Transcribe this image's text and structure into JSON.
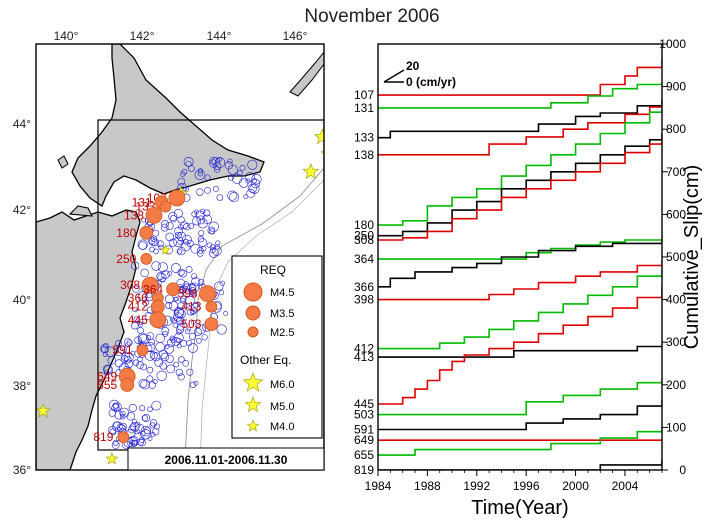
{
  "figure": {
    "title": "November 2006"
  },
  "map": {
    "lon_ticks": [
      "140°",
      "142°",
      "144°",
      "146°"
    ],
    "lat_ticks": [
      "44°",
      "42°",
      "40°",
      "38°",
      "36°"
    ],
    "date_range": "2006.11.01-2006.11.30",
    "land_color": "#c8c8c8",
    "sea_color": "#ffffff",
    "station_color": "#c00000",
    "marker_color": "#f47b45",
    "star_color": "#ffff33",
    "eq_circle_color": "#1f1fd0",
    "stations": [
      {
        "id": "107",
        "lon": 142.9,
        "lat": 42.3
      },
      {
        "id": "131",
        "lon": 142.5,
        "lat": 42.2
      },
      {
        "id": "133",
        "lon": 142.6,
        "lat": 42.1
      },
      {
        "id": "138",
        "lon": 142.3,
        "lat": 41.9
      },
      {
        "id": "180",
        "lon": 142.1,
        "lat": 41.5
      },
      {
        "id": "250",
        "lon": 142.1,
        "lat": 40.9
      },
      {
        "id": "308",
        "lon": 142.2,
        "lat": 40.3
      },
      {
        "id": "364",
        "lon": 142.8,
        "lat": 40.2
      },
      {
        "id": "366",
        "lon": 142.4,
        "lat": 40.0
      },
      {
        "id": "398",
        "lon": 143.7,
        "lat": 40.1
      },
      {
        "id": "412",
        "lon": 142.4,
        "lat": 39.8
      },
      {
        "id": "413",
        "lon": 143.8,
        "lat": 39.8
      },
      {
        "id": "445",
        "lon": 142.4,
        "lat": 39.5
      },
      {
        "id": "503",
        "lon": 143.8,
        "lat": 39.4
      },
      {
        "id": "591",
        "lon": 142.0,
        "lat": 38.8
      },
      {
        "id": "649",
        "lon": 141.6,
        "lat": 38.2
      },
      {
        "id": "655",
        "lon": 141.6,
        "lat": 38.0
      },
      {
        "id": "819",
        "lon": 141.5,
        "lat": 36.8
      }
    ],
    "legend": {
      "req_title": "REQ",
      "req_items": [
        "M4.5",
        "M3.5",
        "M2.5"
      ],
      "other_title": "Other Eq.",
      "other_items": [
        "M6.0",
        "M5.0",
        "M4.0"
      ]
    }
  },
  "chart_data": {
    "type": "line",
    "xlabel": "Time(Year)",
    "ylabel": "Cumulative_Slip(cm)",
    "xlim": [
      1984,
      2007
    ],
    "ylim": [
      0,
      1000
    ],
    "x_ticks": [
      "1984",
      "1988",
      "1992",
      "1996",
      "2000",
      "2004"
    ],
    "y_ticks": [
      "0",
      "100",
      "200",
      "300",
      "400",
      "500",
      "600",
      "700",
      "800",
      "900",
      "1000"
    ],
    "scale_label_top": "20",
    "scale_label_bottom": "0 (cm/yr)",
    "series": [
      {
        "name": "107",
        "color": "#e00000",
        "points": [
          [
            1984,
            880
          ],
          [
            2000,
            880
          ],
          [
            2002,
            905
          ],
          [
            2004,
            925
          ],
          [
            2005,
            945
          ],
          [
            2007,
            965
          ]
        ]
      },
      {
        "name": "131",
        "color": "#00bb00",
        "points": [
          [
            1984,
            850
          ],
          [
            1996,
            850
          ],
          [
            1998,
            862
          ],
          [
            2001,
            878
          ],
          [
            2003,
            895
          ],
          [
            2005,
            905
          ],
          [
            2007,
            910
          ]
        ]
      },
      {
        "name": "133",
        "color": "#000000",
        "points": [
          [
            1984,
            780
          ],
          [
            1985,
            795
          ],
          [
            1995,
            795
          ],
          [
            1997,
            812
          ],
          [
            2000,
            830
          ],
          [
            2002,
            838
          ],
          [
            2005,
            855
          ],
          [
            2007,
            870
          ]
        ]
      },
      {
        "name": "138",
        "color": "#e00000",
        "points": [
          [
            1984,
            740
          ],
          [
            1991,
            740
          ],
          [
            1993,
            765
          ],
          [
            1996,
            782
          ],
          [
            1999,
            800
          ],
          [
            2001,
            815
          ],
          [
            2004,
            835
          ],
          [
            2006,
            852
          ],
          [
            2007,
            862
          ]
        ]
      },
      {
        "name": "180",
        "color": "#00bb00",
        "points": [
          [
            1984,
            575
          ],
          [
            1986,
            585
          ],
          [
            1988,
            620
          ],
          [
            1990,
            640
          ],
          [
            1992,
            660
          ],
          [
            1994,
            690
          ],
          [
            1996,
            715
          ],
          [
            1998,
            740
          ],
          [
            2000,
            765
          ],
          [
            2002,
            790
          ],
          [
            2004,
            815
          ],
          [
            2006,
            840
          ],
          [
            2007,
            848
          ]
        ]
      },
      {
        "name": "250",
        "color": "#000000",
        "points": [
          [
            1984,
            550
          ],
          [
            1986,
            560
          ],
          [
            1988,
            580
          ],
          [
            1990,
            610
          ],
          [
            1992,
            630
          ],
          [
            1994,
            660
          ],
          [
            1996,
            680
          ],
          [
            1998,
            700
          ],
          [
            2000,
            720
          ],
          [
            2002,
            740
          ],
          [
            2004,
            760
          ],
          [
            2006,
            775
          ],
          [
            2007,
            790
          ]
        ]
      },
      {
        "name": "308",
        "color": "#e00000",
        "points": [
          [
            1984,
            540
          ],
          [
            1986,
            545
          ],
          [
            1988,
            560
          ],
          [
            1990,
            590
          ],
          [
            1992,
            610
          ],
          [
            1994,
            640
          ],
          [
            1996,
            660
          ],
          [
            1998,
            680
          ],
          [
            2000,
            700
          ],
          [
            2002,
            720
          ],
          [
            2004,
            745
          ],
          [
            2006,
            765
          ],
          [
            2007,
            785
          ]
        ]
      },
      {
        "name": "364",
        "color": "#00bb00",
        "points": [
          [
            1984,
            495
          ],
          [
            1994,
            495
          ],
          [
            1996,
            510
          ],
          [
            1998,
            520
          ],
          [
            2000,
            528
          ],
          [
            2002,
            535
          ],
          [
            2004,
            540
          ],
          [
            2007,
            548
          ]
        ]
      },
      {
        "name": "366",
        "color": "#000000",
        "points": [
          [
            1984,
            430
          ],
          [
            1985,
            450
          ],
          [
            1987,
            465
          ],
          [
            1990,
            475
          ],
          [
            1992,
            485
          ],
          [
            1994,
            500
          ],
          [
            1997,
            515
          ],
          [
            2000,
            525
          ],
          [
            2003,
            532
          ],
          [
            2007,
            540
          ]
        ]
      },
      {
        "name": "398",
        "color": "#e00000",
        "points": [
          [
            1984,
            400
          ],
          [
            1991,
            400
          ],
          [
            1993,
            412
          ],
          [
            1995,
            425
          ],
          [
            1997,
            440
          ],
          [
            2000,
            455
          ],
          [
            2002,
            465
          ],
          [
            2005,
            480
          ],
          [
            2007,
            490
          ]
        ]
      },
      {
        "name": "412",
        "color": "#00bb00",
        "points": [
          [
            1984,
            285
          ],
          [
            1987,
            285
          ],
          [
            1989,
            298
          ],
          [
            1991,
            312
          ],
          [
            1993,
            330
          ],
          [
            1995,
            350
          ],
          [
            1997,
            370
          ],
          [
            1999,
            390
          ],
          [
            2001,
            410
          ],
          [
            2003,
            430
          ],
          [
            2005,
            455
          ],
          [
            2007,
            470
          ]
        ]
      },
      {
        "name": "413",
        "color": "#000000",
        "points": [
          [
            1984,
            265
          ],
          [
            1994,
            265
          ],
          [
            1995,
            280
          ],
          [
            2004,
            280
          ],
          [
            2005,
            290
          ],
          [
            2007,
            295
          ]
        ]
      },
      {
        "name": "445",
        "color": "#e00000",
        "points": [
          [
            1984,
            155
          ],
          [
            1985,
            155
          ],
          [
            1986,
            170
          ],
          [
            1987,
            190
          ],
          [
            1988,
            210
          ],
          [
            1989,
            235
          ],
          [
            1990,
            255
          ],
          [
            1991,
            270
          ],
          [
            1993,
            285
          ],
          [
            1995,
            300
          ],
          [
            1997,
            320
          ],
          [
            1999,
            340
          ],
          [
            2001,
            360
          ],
          [
            2003,
            380
          ],
          [
            2005,
            405
          ],
          [
            2007,
            430
          ]
        ]
      },
      {
        "name": "503",
        "color": "#00bb00",
        "points": [
          [
            1984,
            130
          ],
          [
            1994,
            130
          ],
          [
            1996,
            160
          ],
          [
            1999,
            175
          ],
          [
            2002,
            190
          ],
          [
            2005,
            205
          ],
          [
            2007,
            215
          ]
        ]
      },
      {
        "name": "591",
        "color": "#000000",
        "points": [
          [
            1984,
            95
          ],
          [
            1994,
            95
          ],
          [
            1996,
            110
          ],
          [
            1999,
            120
          ],
          [
            2002,
            130
          ],
          [
            2005,
            150
          ],
          [
            2007,
            165
          ]
        ]
      },
      {
        "name": "649",
        "color": "#e00000",
        "points": [
          [
            1984,
            70
          ],
          [
            2007,
            70
          ]
        ]
      },
      {
        "name": "655",
        "color": "#00bb00",
        "points": [
          [
            1984,
            35
          ],
          [
            1986,
            35
          ],
          [
            1987,
            48
          ],
          [
            1996,
            48
          ],
          [
            1998,
            62
          ],
          [
            2002,
            75
          ],
          [
            2005,
            90
          ],
          [
            2007,
            100
          ]
        ]
      },
      {
        "name": "819",
        "color": "#000000",
        "points": [
          [
            1984,
            0
          ],
          [
            2001,
            0
          ],
          [
            2002,
            12
          ],
          [
            2006,
            12
          ],
          [
            2007,
            25
          ]
        ]
      }
    ]
  }
}
